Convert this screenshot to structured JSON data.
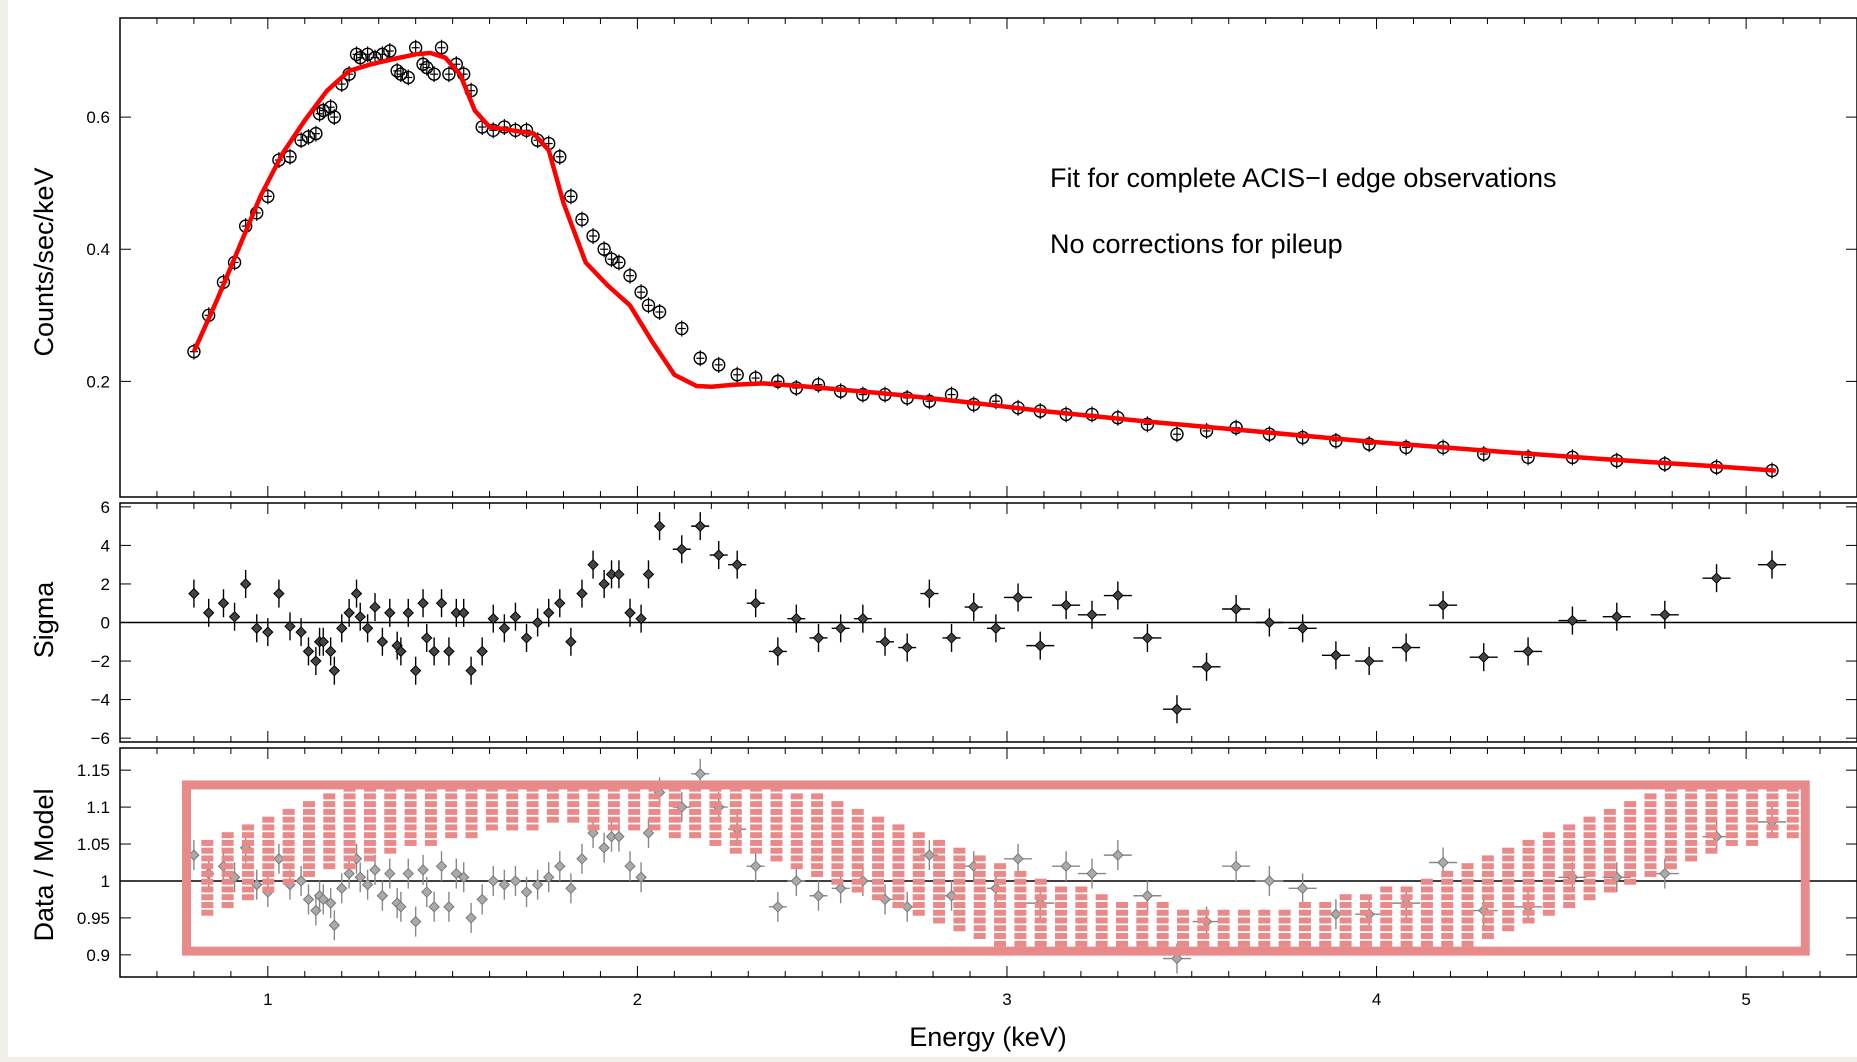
{
  "chart_data": [
    {
      "type": "scatter",
      "ylabel": "Counts/sec/keV",
      "annotations": [
        "Fit for complete ACIS−I edge observations",
        "No corrections for pileup"
      ],
      "xlim": [
        0.6,
        5.3
      ],
      "ylim": [
        0.025,
        0.75
      ],
      "yticks": [
        0.2,
        0.4,
        0.6
      ],
      "ytick_labels": [
        "0.2",
        "0.4",
        "0.6"
      ],
      "series": [
        {
          "kind": "data-points",
          "x": [
            0.8,
            0.84,
            0.88,
            0.91,
            0.94,
            0.97,
            1.0,
            1.03,
            1.06,
            1.09,
            1.11,
            1.13,
            1.14,
            1.15,
            1.17,
            1.18,
            1.2,
            1.22,
            1.24,
            1.25,
            1.27,
            1.29,
            1.31,
            1.33,
            1.35,
            1.36,
            1.38,
            1.4,
            1.42,
            1.43,
            1.45,
            1.47,
            1.49,
            1.51,
            1.53,
            1.55,
            1.58,
            1.61,
            1.64,
            1.67,
            1.7,
            1.73,
            1.76,
            1.79,
            1.82,
            1.85,
            1.88,
            1.91,
            1.93,
            1.95,
            1.98,
            2.01,
            2.03,
            2.06,
            2.12,
            2.17,
            2.22,
            2.27,
            2.32,
            2.38,
            2.43,
            2.49,
            2.55,
            2.61,
            2.67,
            2.73,
            2.79,
            2.85,
            2.91,
            2.97,
            3.03,
            3.09,
            3.16,
            3.23,
            3.3,
            3.38,
            3.46,
            3.54,
            3.62,
            3.71,
            3.8,
            3.89,
            3.98,
            4.08,
            4.18,
            4.29,
            4.41,
            4.53,
            4.65,
            4.78,
            4.92,
            5.07
          ],
          "y": [
            0.245,
            0.3,
            0.35,
            0.38,
            0.435,
            0.455,
            0.48,
            0.535,
            0.54,
            0.565,
            0.57,
            0.575,
            0.605,
            0.61,
            0.615,
            0.6,
            0.65,
            0.665,
            0.695,
            0.69,
            0.695,
            0.69,
            0.695,
            0.7,
            0.67,
            0.665,
            0.66,
            0.705,
            0.68,
            0.675,
            0.665,
            0.705,
            0.665,
            0.68,
            0.665,
            0.64,
            0.585,
            0.58,
            0.585,
            0.58,
            0.58,
            0.565,
            0.56,
            0.54,
            0.48,
            0.445,
            0.42,
            0.4,
            0.385,
            0.38,
            0.36,
            0.335,
            0.315,
            0.305,
            0.28,
            0.235,
            0.225,
            0.21,
            0.205,
            0.2,
            0.19,
            0.195,
            0.185,
            0.18,
            0.18,
            0.175,
            0.17,
            0.18,
            0.165,
            0.17,
            0.16,
            0.155,
            0.15,
            0.15,
            0.145,
            0.135,
            0.12,
            0.125,
            0.13,
            0.12,
            0.115,
            0.11,
            0.105,
            0.1,
            0.1,
            0.09,
            0.085,
            0.085,
            0.08,
            0.075,
            0.07,
            0.065
          ]
        },
        {
          "kind": "model",
          "color": "#ff0000",
          "x": [
            0.8,
            0.86,
            0.92,
            0.98,
            1.04,
            1.1,
            1.16,
            1.22,
            1.28,
            1.34,
            1.4,
            1.44,
            1.48,
            1.52,
            1.56,
            1.6,
            1.66,
            1.72,
            1.76,
            1.8,
            1.86,
            1.92,
            1.98,
            2.04,
            2.1,
            2.16,
            2.2,
            2.26,
            2.34,
            2.44,
            2.54,
            2.7,
            2.9,
            3.1,
            3.4,
            3.7,
            4.0,
            4.3,
            4.6,
            4.9,
            5.08
          ],
          "y": [
            0.245,
            0.32,
            0.4,
            0.48,
            0.545,
            0.595,
            0.64,
            0.67,
            0.68,
            0.688,
            0.695,
            0.697,
            0.69,
            0.665,
            0.61,
            0.585,
            0.58,
            0.575,
            0.55,
            0.47,
            0.38,
            0.345,
            0.315,
            0.26,
            0.21,
            0.193,
            0.192,
            0.195,
            0.197,
            0.193,
            0.188,
            0.18,
            0.168,
            0.155,
            0.138,
            0.123,
            0.108,
            0.095,
            0.083,
            0.072,
            0.065
          ]
        }
      ]
    },
    {
      "type": "scatter",
      "ylabel": "Sigma",
      "xlim": [
        0.6,
        5.3
      ],
      "ylim": [
        -6.2,
        6.2
      ],
      "yticks": [
        -6,
        -4,
        -2,
        0,
        2,
        4,
        6
      ],
      "ytick_labels": [
        "−6",
        "−4",
        "−2",
        "0",
        "2",
        "4",
        "6"
      ],
      "series": [
        {
          "kind": "residuals",
          "x": [
            0.8,
            0.84,
            0.88,
            0.91,
            0.94,
            0.97,
            1.0,
            1.03,
            1.06,
            1.09,
            1.11,
            1.13,
            1.14,
            1.15,
            1.17,
            1.18,
            1.2,
            1.22,
            1.24,
            1.25,
            1.27,
            1.29,
            1.31,
            1.33,
            1.35,
            1.36,
            1.38,
            1.4,
            1.42,
            1.43,
            1.45,
            1.47,
            1.49,
            1.51,
            1.53,
            1.55,
            1.58,
            1.61,
            1.64,
            1.67,
            1.7,
            1.73,
            1.76,
            1.79,
            1.82,
            1.85,
            1.88,
            1.91,
            1.93,
            1.95,
            1.98,
            2.01,
            2.03,
            2.06,
            2.12,
            2.17,
            2.22,
            2.27,
            2.32,
            2.38,
            2.43,
            2.49,
            2.55,
            2.61,
            2.67,
            2.73,
            2.79,
            2.85,
            2.91,
            2.97,
            3.03,
            3.09,
            3.16,
            3.23,
            3.3,
            3.38,
            3.46,
            3.54,
            3.62,
            3.71,
            3.8,
            3.89,
            3.98,
            4.08,
            4.18,
            4.29,
            4.41,
            4.53,
            4.65,
            4.78,
            4.92,
            5.07
          ],
          "y": [
            1.5,
            0.5,
            1.0,
            0.3,
            2.0,
            -0.3,
            -0.5,
            1.5,
            -0.2,
            -0.5,
            -1.5,
            -2.0,
            -1.0,
            -1.0,
            -1.5,
            -2.5,
            -0.3,
            0.5,
            1.5,
            0.3,
            -0.3,
            0.8,
            -1.0,
            0.5,
            -1.2,
            -1.5,
            0.5,
            -2.5,
            1.0,
            -0.8,
            -1.5,
            1.0,
            -1.5,
            0.5,
            0.5,
            -2.5,
            -1.5,
            0.2,
            -0.3,
            0.3,
            -0.8,
            0.0,
            0.5,
            1.0,
            -1.0,
            1.5,
            3.0,
            2.0,
            2.5,
            2.5,
            0.5,
            0.2,
            2.5,
            5.0,
            3.8,
            5.0,
            3.5,
            3.0,
            1.0,
            -1.5,
            0.2,
            -0.8,
            -0.3,
            0.2,
            -1.0,
            -1.3,
            1.5,
            -0.8,
            0.8,
            -0.3,
            1.3,
            -1.2,
            0.9,
            0.4,
            1.4,
            -0.8,
            -4.5,
            -2.3,
            0.7,
            0.0,
            -0.3,
            -1.7,
            -2.0,
            -1.3,
            0.9,
            -1.8,
            -1.5,
            0.1,
            0.3,
            0.4,
            2.3,
            3.0
          ]
        }
      ]
    },
    {
      "type": "scatter",
      "ylabel": "Data / Model",
      "xlabel": "Energy (keV)",
      "xlim": [
        0.6,
        5.3
      ],
      "ylim": [
        0.87,
        1.18
      ],
      "xticks": [
        1,
        2,
        3,
        4,
        5
      ],
      "xtick_labels": [
        "1",
        "2",
        "3",
        "4",
        "5"
      ],
      "yticks": [
        0.9,
        0.95,
        1,
        1.05,
        1.1,
        1.15
      ],
      "ytick_labels": [
        "0.9",
        "0.95",
        "1",
        "1.05",
        "1.1",
        "1.15"
      ],
      "overlay_color": "#e88a8a",
      "series": [
        {
          "kind": "ratio",
          "x": [
            0.8,
            0.84,
            0.88,
            0.91,
            0.94,
            0.97,
            1.0,
            1.03,
            1.06,
            1.09,
            1.11,
            1.13,
            1.14,
            1.15,
            1.17,
            1.18,
            1.2,
            1.22,
            1.24,
            1.25,
            1.27,
            1.29,
            1.31,
            1.33,
            1.35,
            1.36,
            1.38,
            1.4,
            1.42,
            1.43,
            1.45,
            1.47,
            1.49,
            1.51,
            1.53,
            1.55,
            1.58,
            1.61,
            1.64,
            1.67,
            1.7,
            1.73,
            1.76,
            1.79,
            1.82,
            1.85,
            1.88,
            1.91,
            1.93,
            1.95,
            1.98,
            2.01,
            2.03,
            2.06,
            2.12,
            2.17,
            2.22,
            2.27,
            2.32,
            2.38,
            2.43,
            2.49,
            2.55,
            2.61,
            2.67,
            2.73,
            2.79,
            2.85,
            2.91,
            2.97,
            3.03,
            3.09,
            3.16,
            3.23,
            3.3,
            3.38,
            3.46,
            3.54,
            3.62,
            3.71,
            3.8,
            3.89,
            3.98,
            4.08,
            4.18,
            4.29,
            4.41,
            4.53,
            4.65,
            4.78,
            4.92,
            5.07
          ],
          "y": [
            1.035,
            1.01,
            1.02,
            1.005,
            1.045,
            0.995,
            0.985,
            1.03,
            0.995,
            1.0,
            0.975,
            0.96,
            0.98,
            0.975,
            0.97,
            0.94,
            0.99,
            1.01,
            1.03,
            1.005,
            0.995,
            1.015,
            0.98,
            1.01,
            0.97,
            0.965,
            1.01,
            0.945,
            1.015,
            0.985,
            0.965,
            1.02,
            0.965,
            1.01,
            1.005,
            0.95,
            0.975,
            1.0,
            0.995,
            1.0,
            0.985,
            0.995,
            1.005,
            1.02,
            0.99,
            1.03,
            1.065,
            1.045,
            1.06,
            1.06,
            1.02,
            1.005,
            1.065,
            1.12,
            1.1,
            1.145,
            1.1,
            1.07,
            1.02,
            0.965,
            1.0,
            0.98,
            0.99,
            1.0,
            0.975,
            0.965,
            1.035,
            0.98,
            1.02,
            0.99,
            1.03,
            0.97,
            1.02,
            1.01,
            1.035,
            0.98,
            0.895,
            0.945,
            1.02,
            1.0,
            0.99,
            0.955,
            0.955,
            0.97,
            1.025,
            0.96,
            0.965,
            1.005,
            1.005,
            1.01,
            1.06,
            1.08
          ]
        }
      ]
    }
  ]
}
